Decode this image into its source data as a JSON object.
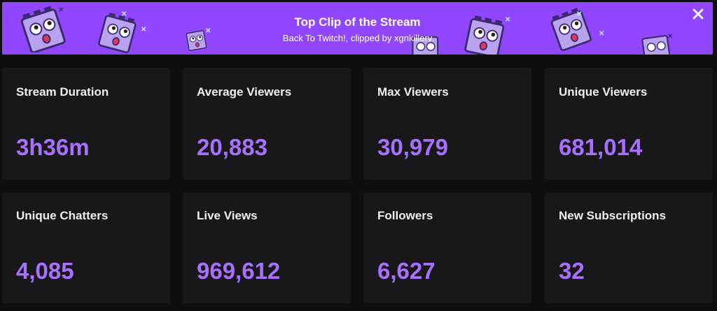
{
  "banner": {
    "title": "Top Clip of the Stream",
    "subtitle": "Back To Twitch!, clipped by xgnkillerv",
    "close_icon": "close-icon",
    "background_color": "#9147ff",
    "decoration_icon": "surprised-box-emote-icon"
  },
  "stats": [
    {
      "label": "Stream Duration",
      "value": "3h36m"
    },
    {
      "label": "Average Viewers",
      "value": "20,883"
    },
    {
      "label": "Max Viewers",
      "value": "30,979"
    },
    {
      "label": "Unique Viewers",
      "value": "681,014"
    },
    {
      "label": "Unique Chatters",
      "value": "4,085"
    },
    {
      "label": "Live Views",
      "value": "969,612"
    },
    {
      "label": "Followers",
      "value": "6,627"
    },
    {
      "label": "New Subscriptions",
      "value": "32"
    }
  ],
  "colors": {
    "page_background": "#0e0e10",
    "card_background": "#18181b",
    "label_text": "#efeff1",
    "value_text": "#a970ff"
  }
}
